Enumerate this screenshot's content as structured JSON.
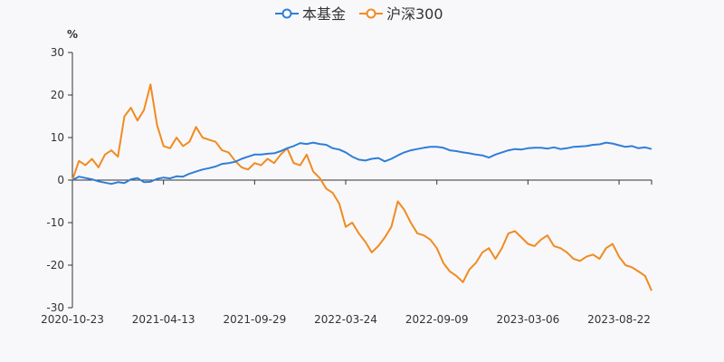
{
  "chart_data": {
    "type": "line",
    "title": "",
    "ylabel": "%",
    "xlabel": "",
    "ylim": [
      -30,
      30
    ],
    "yticks": [
      30,
      20,
      10,
      0,
      -10,
      -20,
      -30
    ],
    "ytick_labels": [
      "30",
      "20",
      "10",
      "0",
      "-10",
      "-20",
      "-30"
    ],
    "x_tick_labels": [
      "2020-10-23",
      "2021-04-13",
      "2021-09-29",
      "2022-03-24",
      "2022-09-09",
      "2023-03-06",
      "2023-08-22"
    ],
    "x_tick_index": [
      0,
      14,
      28,
      42,
      56,
      70,
      84
    ],
    "x_count": 90,
    "legend": [
      "本基金",
      "沪深300"
    ],
    "legend_position": "top-center",
    "grid": false,
    "series": [
      {
        "name": "本基金",
        "color": "#2f7ed8",
        "values": [
          0,
          0.8,
          0.5,
          0.2,
          -0.3,
          -0.6,
          -0.9,
          -0.5,
          -0.7,
          0.2,
          0.5,
          -0.5,
          -0.4,
          0.3,
          0.6,
          0.4,
          0.9,
          0.8,
          1.5,
          2.0,
          2.5,
          2.8,
          3.2,
          3.8,
          4.0,
          4.3,
          5.0,
          5.5,
          6.0,
          6.0,
          6.2,
          6.3,
          6.8,
          7.5,
          8.0,
          8.7,
          8.5,
          8.8,
          8.5,
          8.3,
          7.5,
          7.2,
          6.5,
          5.5,
          4.8,
          4.6,
          5.0,
          5.2,
          4.4,
          5.0,
          5.8,
          6.5,
          7.0,
          7.3,
          7.6,
          7.8,
          7.8,
          7.6,
          7.0,
          6.8,
          6.5,
          6.3,
          6.0,
          5.8,
          5.3,
          6.0,
          6.5,
          7.0,
          7.3,
          7.2,
          7.5,
          7.6,
          7.6,
          7.4,
          7.7,
          7.3,
          7.5,
          7.8,
          7.9,
          8.0,
          8.3,
          8.4,
          8.8,
          8.6,
          8.2,
          7.8,
          8.0,
          7.5,
          7.7,
          7.3
        ]
      },
      {
        "name": "沪深300",
        "color": "#f28a20",
        "values": [
          0,
          4.5,
          3.5,
          5.0,
          3.0,
          6.0,
          7.0,
          5.5,
          15.0,
          17.0,
          14.0,
          16.5,
          22.5,
          13.0,
          8.0,
          7.5,
          10.0,
          8.0,
          9.0,
          12.5,
          10.0,
          9.5,
          9.0,
          7.0,
          6.5,
          4.5,
          3.0,
          2.5,
          4.0,
          3.5,
          5.0,
          4.0,
          6.0,
          7.5,
          4.0,
          3.5,
          6.0,
          2.0,
          0.5,
          -2.0,
          -3.0,
          -5.5,
          -11.0,
          -10.0,
          -12.5,
          -14.5,
          -17.0,
          -15.5,
          -13.5,
          -11.0,
          -5.0,
          -7.0,
          -10.0,
          -12.5,
          -13.0,
          -14.0,
          -16.0,
          -19.5,
          -21.5,
          -22.5,
          -24.0,
          -21.0,
          -19.5,
          -17.0,
          -16.0,
          -18.5,
          -16.0,
          -12.5,
          -12.0,
          -13.5,
          -15.0,
          -15.5,
          -14.0,
          -13.0,
          -15.5,
          -16.0,
          -17.0,
          -18.5,
          -19.0,
          -18.0,
          -17.5,
          -18.5,
          -16.0,
          -15.0,
          -18.0,
          -20.0,
          -20.5,
          -21.5,
          -22.5,
          -26.0
        ]
      }
    ]
  }
}
